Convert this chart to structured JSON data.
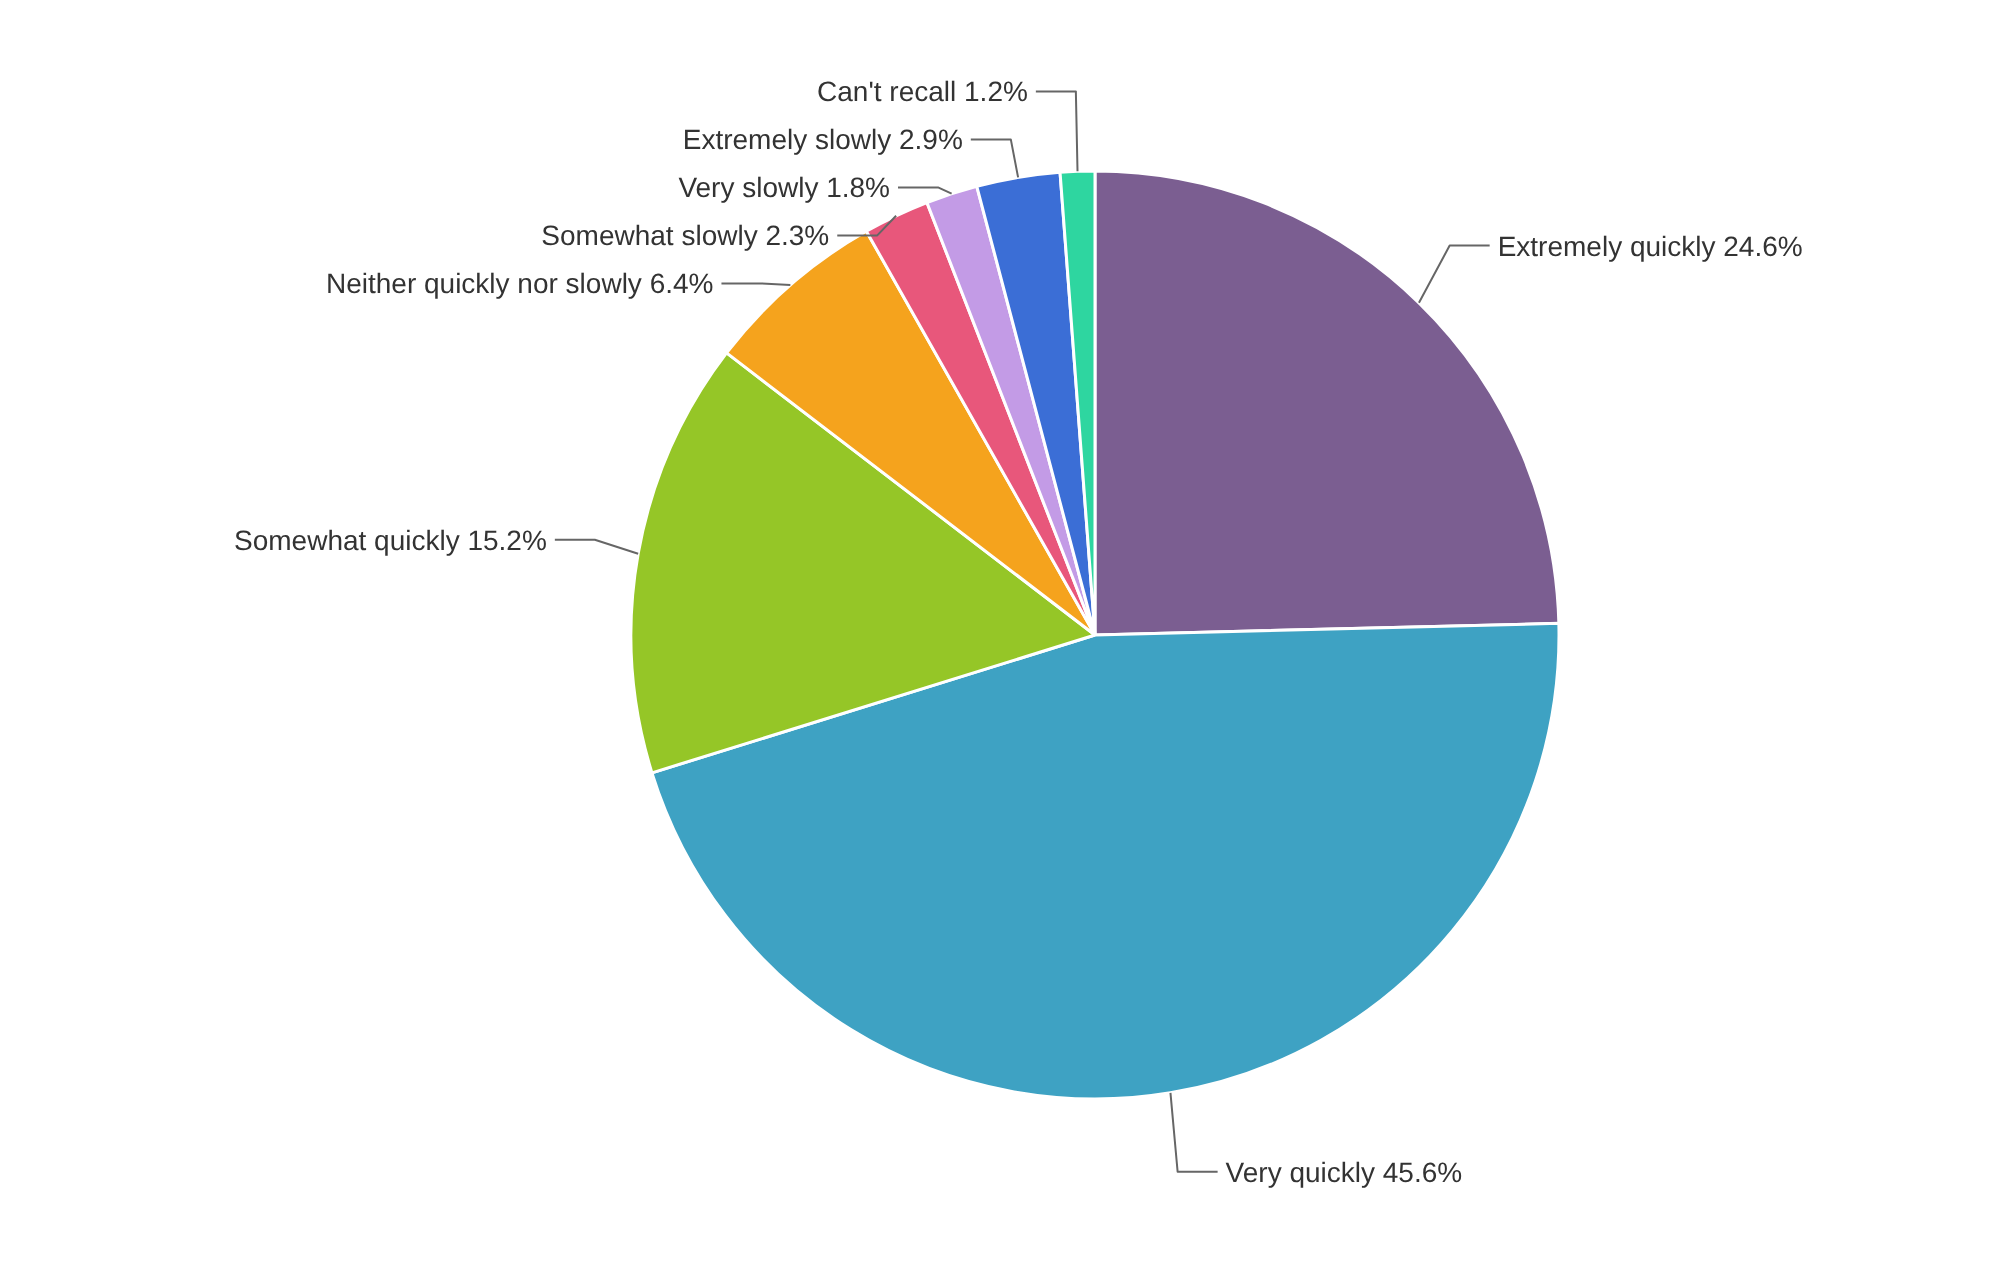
{
  "chart_data": {
    "type": "pie",
    "categories": [
      "Extremely quickly",
      "Very quickly",
      "Somewhat quickly",
      "Neither quickly nor slowly",
      "Somewhat slowly",
      "Very slowly",
      "Extremely slowly",
      "Can't recall"
    ],
    "values": [
      24.6,
      45.6,
      15.2,
      6.4,
      2.3,
      1.8,
      2.9,
      1.2
    ],
    "value_labels": [
      "24.6%",
      "45.6%",
      "15.2%",
      "6.4%",
      "2.3%",
      "1.8%",
      "2.9%",
      "1.2%"
    ],
    "colors": [
      "#7b5e91",
      "#3ea2c3",
      "#95c627",
      "#f5a31d",
      "#e8577b",
      "#c39be6",
      "#3b6ed6",
      "#2ed6a0"
    ]
  }
}
